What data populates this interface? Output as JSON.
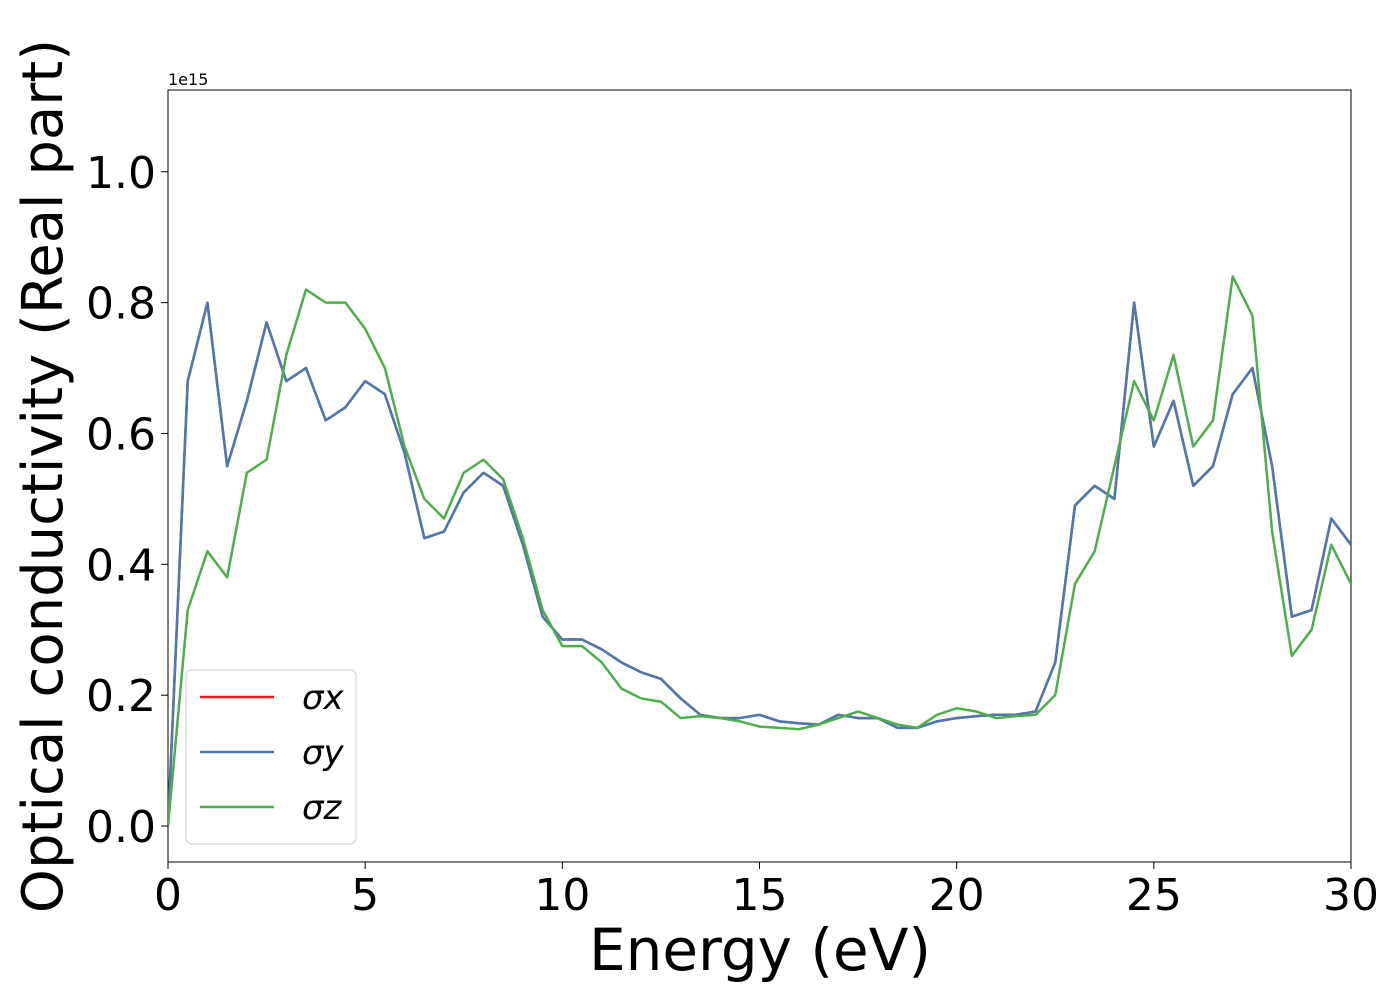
{
  "chart_data": {
    "type": "line",
    "xlabel": "Energy (eV)",
    "ylabel": "Optical conductivity (Real part)",
    "y_offset_label": "1e15",
    "x": [
      0,
      0.5,
      1,
      1.5,
      2,
      2.5,
      3,
      3.5,
      4,
      4.5,
      5,
      5.5,
      6,
      6.5,
      7,
      7.5,
      8,
      8.5,
      9,
      9.5,
      10,
      10.5,
      11,
      11.5,
      12,
      12.5,
      13,
      13.5,
      14,
      14.5,
      15,
      15.5,
      16,
      16.5,
      17,
      17.5,
      18,
      18.5,
      19,
      19.5,
      20,
      20.5,
      21,
      21.5,
      22,
      22.5,
      23,
      23.5,
      24,
      24.5,
      25,
      25.5,
      26,
      26.5,
      27,
      27.5,
      28,
      28.5,
      29,
      29.5,
      30
    ],
    "series": [
      {
        "name": "σx",
        "color": "#e41a1c",
        "values": [
          0,
          0.68,
          0.8,
          0.55,
          0.65,
          0.77,
          0.68,
          0.7,
          0.62,
          0.64,
          0.68,
          0.66,
          0.57,
          0.44,
          0.45,
          0.51,
          0.54,
          0.52,
          0.43,
          0.32,
          0.285,
          0.285,
          0.27,
          0.25,
          0.235,
          0.225,
          0.195,
          0.17,
          0.165,
          0.165,
          0.17,
          0.16,
          0.157,
          0.155,
          0.17,
          0.165,
          0.165,
          0.15,
          0.15,
          0.16,
          0.165,
          0.168,
          0.17,
          0.17,
          0.175,
          0.25,
          0.49,
          0.52,
          0.5,
          0.8,
          0.58,
          0.65,
          0.52,
          0.55,
          0.66,
          0.7,
          0.55,
          0.32,
          0.33,
          0.47,
          0.43
        ]
      },
      {
        "name": "σy",
        "color": "#4a7ab0",
        "values": [
          0,
          0.68,
          0.8,
          0.55,
          0.65,
          0.77,
          0.68,
          0.7,
          0.62,
          0.64,
          0.68,
          0.66,
          0.57,
          0.44,
          0.45,
          0.51,
          0.54,
          0.52,
          0.43,
          0.32,
          0.285,
          0.285,
          0.27,
          0.25,
          0.235,
          0.225,
          0.195,
          0.17,
          0.165,
          0.165,
          0.17,
          0.16,
          0.157,
          0.155,
          0.17,
          0.165,
          0.165,
          0.15,
          0.15,
          0.16,
          0.165,
          0.168,
          0.17,
          0.17,
          0.175,
          0.25,
          0.49,
          0.52,
          0.5,
          0.8,
          0.58,
          0.65,
          0.52,
          0.55,
          0.66,
          0.7,
          0.55,
          0.32,
          0.33,
          0.47,
          0.43
        ]
      },
      {
        "name": "σz",
        "color": "#4daf4a",
        "values": [
          0,
          0.33,
          0.42,
          0.38,
          0.54,
          0.56,
          0.72,
          0.82,
          0.8,
          0.8,
          0.76,
          0.7,
          0.58,
          0.5,
          0.47,
          0.54,
          0.56,
          0.53,
          0.44,
          0.33,
          0.275,
          0.275,
          0.25,
          0.21,
          0.195,
          0.19,
          0.165,
          0.168,
          0.165,
          0.16,
          0.152,
          0.15,
          0.148,
          0.155,
          0.165,
          0.175,
          0.165,
          0.155,
          0.15,
          0.17,
          0.18,
          0.175,
          0.165,
          0.168,
          0.17,
          0.2,
          0.37,
          0.42,
          0.55,
          0.68,
          0.62,
          0.72,
          0.58,
          0.62,
          0.84,
          0.78,
          0.45,
          0.26,
          0.3,
          0.43,
          0.37
        ]
      }
    ],
    "xlim": [
      0,
      30
    ],
    "xticks": [
      0,
      5,
      10,
      15,
      20,
      25,
      30
    ],
    "ylim": [
      -0.055,
      1.125
    ],
    "yticks": [
      {
        "value": 0,
        "label": "0.0"
      },
      0.2,
      0.4,
      0.6,
      0.8,
      {
        "value": 1,
        "label": "1.0"
      }
    ],
    "grid": false,
    "legend": "lower left"
  }
}
